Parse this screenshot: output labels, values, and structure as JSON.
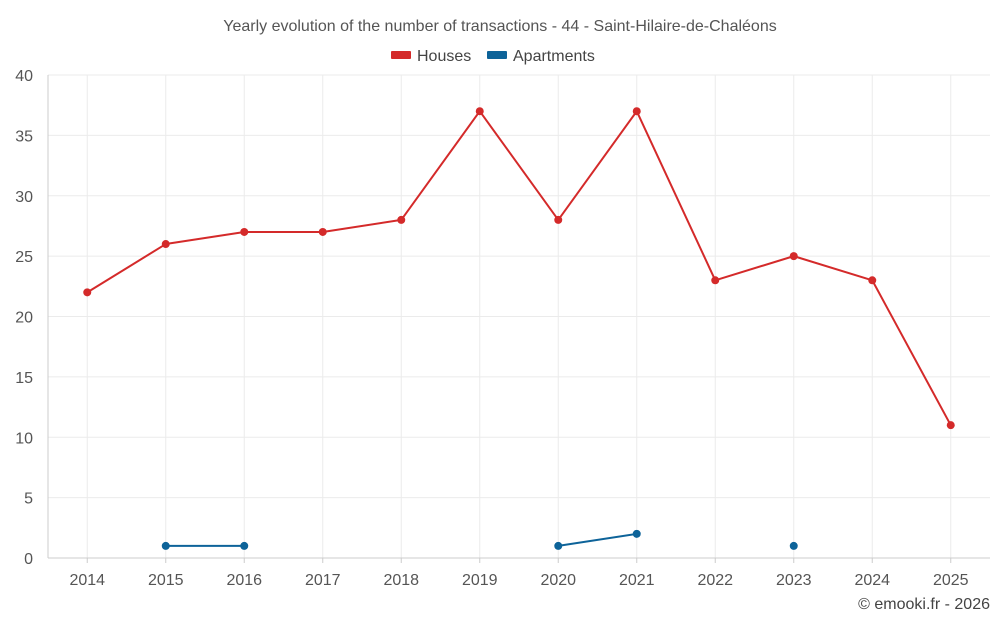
{
  "chart_data": {
    "type": "line",
    "title": "Yearly evolution of the number of transactions - 44 - Saint-Hilaire-de-Chaléons",
    "categories": [
      "2014",
      "2015",
      "2016",
      "2017",
      "2018",
      "2019",
      "2020",
      "2021",
      "2022",
      "2023",
      "2024",
      "2025"
    ],
    "series": [
      {
        "name": "Houses",
        "color": "#d42a2a",
        "values": [
          22,
          26,
          27,
          27,
          28,
          37,
          28,
          37,
          23,
          25,
          23,
          11
        ]
      },
      {
        "name": "Apartments",
        "color": "#0d6399",
        "values": [
          null,
          1,
          1,
          null,
          null,
          null,
          1,
          2,
          null,
          1,
          null,
          null
        ]
      }
    ],
    "ylim": [
      0,
      40
    ],
    "yticks": [
      "0",
      "5",
      "10",
      "15",
      "20",
      "25",
      "30",
      "35",
      "40"
    ],
    "xlabel": "",
    "ylabel": "",
    "grid": true,
    "legend": "top-center"
  },
  "credit": "© emooki.fr - 2026"
}
